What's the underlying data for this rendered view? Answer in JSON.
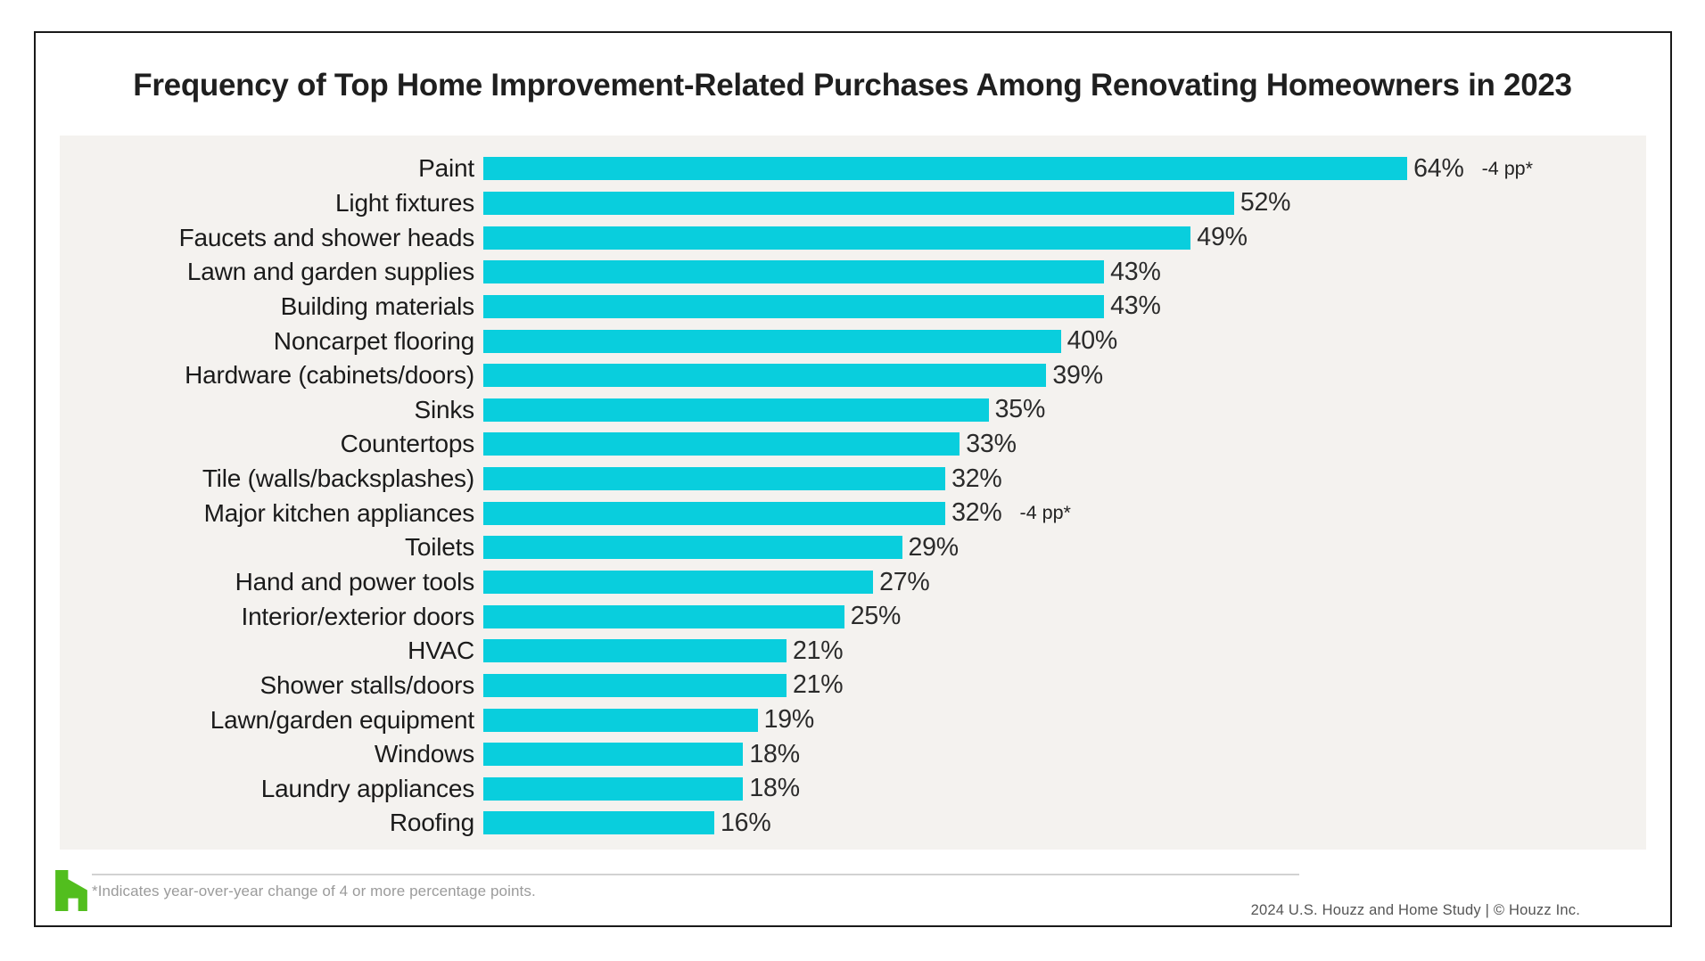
{
  "title": "Frequency of Top Home Improvement-Related Purchases Among Renovating Homeowners in 2023",
  "chart_data": {
    "type": "bar",
    "orientation": "horizontal",
    "unit": "percent",
    "xlim": [
      0,
      80
    ],
    "grid": false,
    "legend": "none",
    "bar_color": "#09cedd",
    "plot_background": "#f4f2ef",
    "categories": [
      "Paint",
      "Light fixtures",
      "Faucets and shower heads",
      "Lawn and garden supplies",
      "Building materials",
      "Noncarpet flooring",
      "Hardware (cabinets/doors)",
      "Sinks",
      "Countertops",
      "Tile (walls/backsplashes)",
      "Major kitchen appliances",
      "Toilets",
      "Hand and power tools",
      "Interior/exterior doors",
      "HVAC",
      "Shower stalls/doors",
      "Lawn/garden equipment",
      "Windows",
      "Laundry appliances",
      "Roofing"
    ],
    "values": [
      64,
      52,
      49,
      43,
      43,
      40,
      39,
      35,
      33,
      32,
      32,
      29,
      27,
      25,
      21,
      21,
      19,
      18,
      18,
      16
    ],
    "value_labels": [
      "64%",
      "52%",
      "49%",
      "43%",
      "43%",
      "40%",
      "39%",
      "35%",
      "33%",
      "32%",
      "32%",
      "29%",
      "27%",
      "25%",
      "21%",
      "21%",
      "19%",
      "18%",
      "18%",
      "16%"
    ],
    "annotations": [
      "-4 pp*",
      null,
      null,
      null,
      null,
      null,
      null,
      null,
      null,
      null,
      "-4 pp*",
      null,
      null,
      null,
      null,
      null,
      null,
      null,
      null,
      null
    ]
  },
  "footer": {
    "footnote": "*Indicates year-over-year change of 4 or more percentage points.",
    "attribution": "2024 U.S. Houzz and Home  Study | © Houzz Inc.",
    "logo_icon": "houzz-logo",
    "logo_color": "#52be1e"
  },
  "colors": {
    "bar": "#09cedd",
    "chart_background": "#f4f2ef",
    "page_background": "#ffffff",
    "border": "#191919",
    "title_text": "#1f1f1f",
    "label_text": "#1b1b1b",
    "footnote_text": "#9b9b9b",
    "attribution_text": "#555555",
    "logo_green": "#52be1e"
  }
}
